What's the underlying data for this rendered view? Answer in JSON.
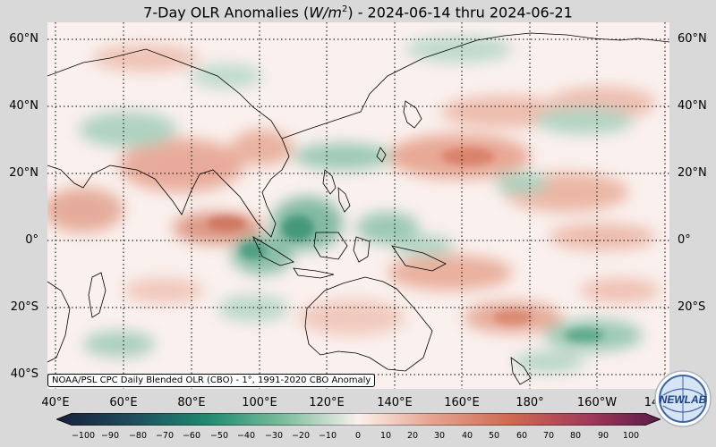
{
  "title": {
    "main": "7-Day OLR Anomalies (",
    "units_var": "W/m",
    "units_exp": "2",
    "rest": ") - 2024-06-14 thru 2024-06-21"
  },
  "map": {
    "lat_labels": [
      "60°N",
      "40°N",
      "20°N",
      "0°",
      "20°S",
      "40°S"
    ],
    "lon_labels": [
      "40°E",
      "60°E",
      "80°E",
      "100°E",
      "120°E",
      "140°E",
      "160°E",
      "180°",
      "160°W",
      "14"
    ],
    "gridlines": "dotted",
    "source_label": "NOAA/PSL CPC Daily Blended OLR (CBO) - 1°, 1991-2020 CBO Anomaly"
  },
  "colorbar": {
    "ticks": [
      "−100",
      "−90",
      "−80",
      "−70",
      "−60",
      "−50",
      "−40",
      "−30",
      "−20",
      "−10",
      "0",
      "10",
      "20",
      "30",
      "40",
      "50",
      "60",
      "70",
      "80",
      "90",
      "100"
    ],
    "colors": {
      "negative_extreme": "#17203a",
      "negative": "#1f8a70",
      "neutral": "#fbf0ec",
      "positive": "#d06a52",
      "positive_extreme": "#5a1a4a"
    }
  },
  "logo": {
    "text": "NEWLAB"
  }
}
